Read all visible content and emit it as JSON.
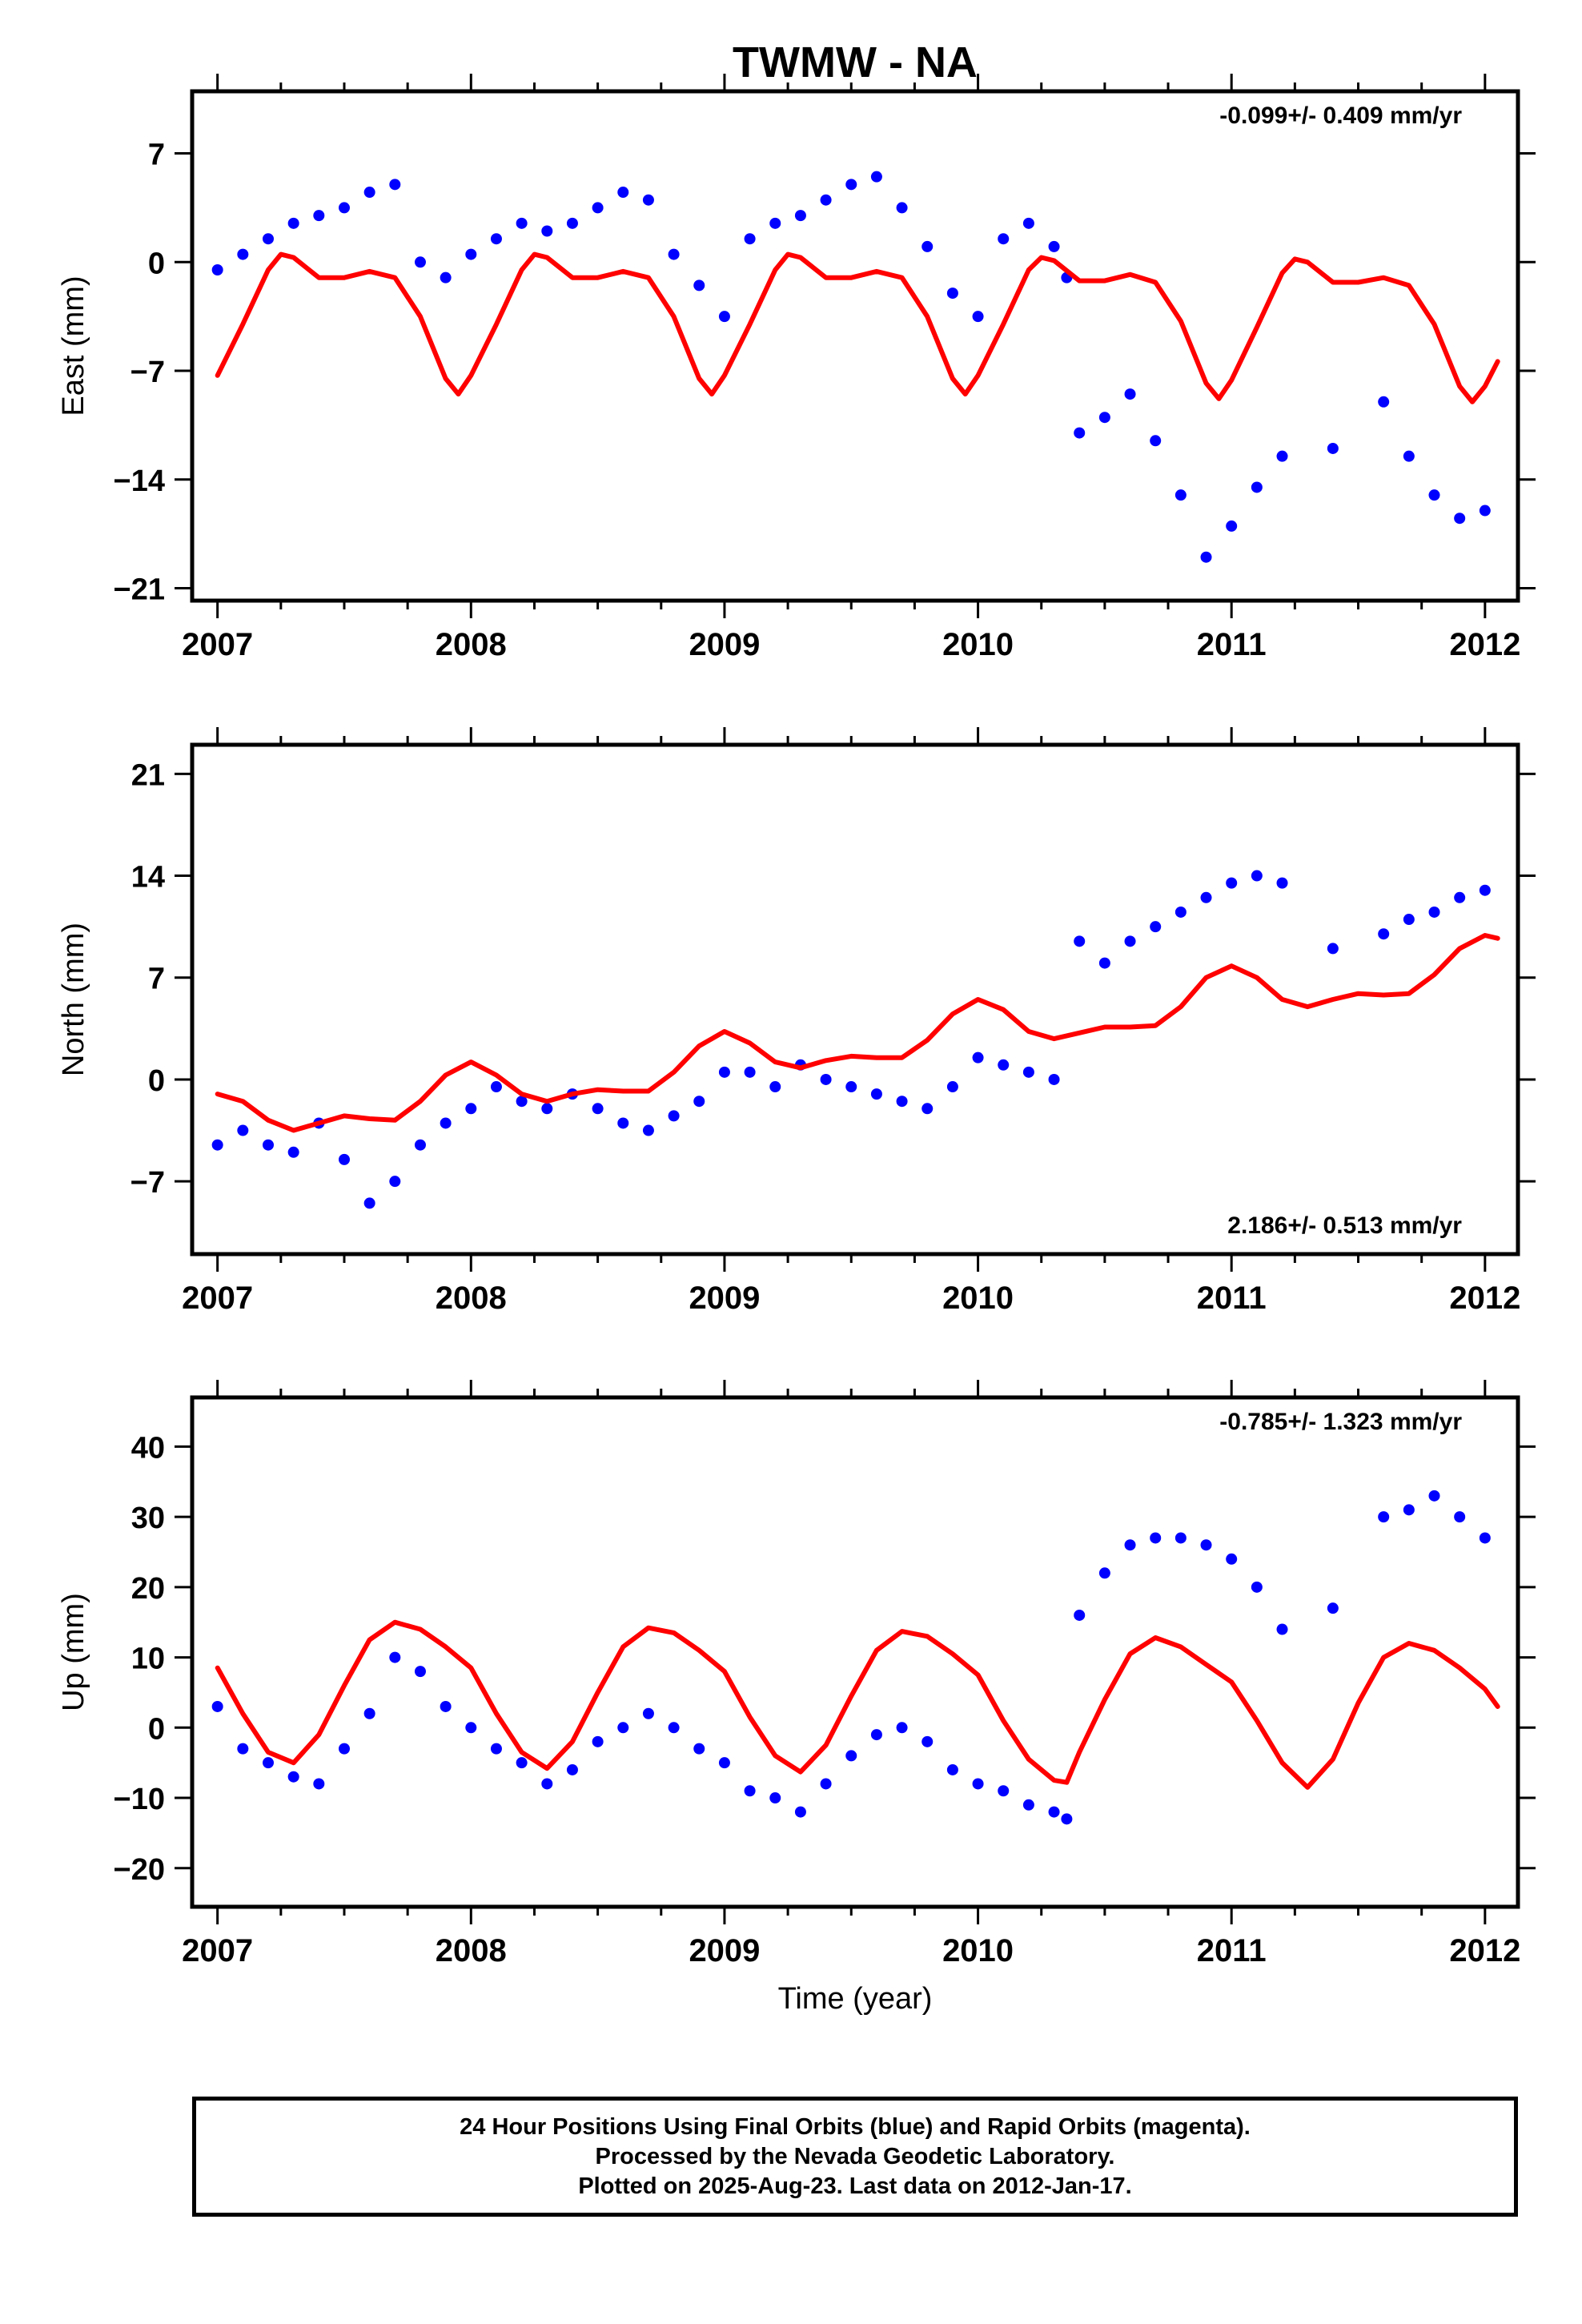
{
  "title": "TWMW - NA",
  "xlabel": "Time (year)",
  "footer": {
    "line1": "24 Hour Positions Using Final Orbits (blue) and Rapid Orbits (magenta).",
    "line2": "Processed by the Nevada Geodetic Laboratory.",
    "line3": "Plotted on 2025-Aug-23. Last data on 2012-Jan-17."
  },
  "colors": {
    "observations": "#0000ff",
    "model": "#ff0000",
    "axes": "#000000"
  },
  "chart_data": [
    {
      "type": "scatter",
      "ylabel": "East (mm)",
      "rate_label": "-0.099+/- 0.409 mm/yr",
      "rate_position": "top-right",
      "xlim": [
        2006.9,
        2012.13
      ],
      "ylim": [
        -21.8,
        11
      ],
      "yticks": [
        7,
        0,
        -7,
        -14,
        -21
      ],
      "ytick_labels": [
        "7",
        "0",
        "−7",
        "−14",
        "−21"
      ],
      "xticks": [
        2007,
        2008,
        2009,
        2010,
        2011,
        2012
      ],
      "xtick_labels": [
        "2007",
        "2008",
        "2009",
        "2010",
        "2011",
        "2012"
      ],
      "grid": false,
      "series": [
        {
          "kind": "points",
          "x": [
            2007.0,
            2007.1,
            2007.2,
            2007.3,
            2007.4,
            2007.5,
            2007.6,
            2007.7,
            2007.8,
            2007.9,
            2008.0,
            2008.1,
            2008.2,
            2008.3,
            2008.4,
            2008.5,
            2008.6,
            2008.7,
            2008.8,
            2008.9,
            2009.0,
            2009.1,
            2009.2,
            2009.3,
            2009.4,
            2009.5,
            2009.6,
            2009.7,
            2009.8,
            2009.9,
            2010.0,
            2010.1,
            2010.2,
            2010.3,
            2010.35,
            2010.4,
            2010.5,
            2010.6,
            2010.7,
            2010.8,
            2010.9,
            2011.0,
            2011.1,
            2011.2,
            2011.4,
            2011.6,
            2011.7,
            2011.8,
            2011.9,
            2012.0
          ],
          "y": [
            -0.5,
            0.5,
            1.5,
            2.5,
            3.0,
            3.5,
            4.5,
            5.0,
            0.0,
            -1.0,
            0.5,
            1.5,
            2.5,
            2.0,
            2.5,
            3.5,
            4.5,
            4.0,
            0.5,
            -1.5,
            -3.5,
            1.5,
            2.5,
            3.0,
            4.0,
            5.0,
            5.5,
            3.5,
            1.0,
            -2.0,
            -3.5,
            1.5,
            2.5,
            1.0,
            -1.0,
            -11.0,
            -10.0,
            -8.5,
            -11.5,
            -15.0,
            -19.0,
            -17.0,
            -14.5,
            -12.5,
            -12.0,
            -9.0,
            -12.5,
            -15.0,
            -16.5,
            -16.0
          ]
        },
        {
          "kind": "line",
          "x": [
            2007.0,
            2007.1,
            2007.2,
            2007.25,
            2007.3,
            2007.4,
            2007.5,
            2007.6,
            2007.7,
            2007.8,
            2007.9,
            2007.95,
            2008.0,
            2008.1,
            2008.2,
            2008.25,
            2008.3,
            2008.4,
            2008.5,
            2008.6,
            2008.7,
            2008.8,
            2008.9,
            2008.95,
            2009.0,
            2009.1,
            2009.2,
            2009.25,
            2009.3,
            2009.4,
            2009.5,
            2009.6,
            2009.7,
            2009.8,
            2009.9,
            2009.95,
            2010.0,
            2010.1,
            2010.2,
            2010.25,
            2010.3,
            2010.4,
            2010.5,
            2010.6,
            2010.7,
            2010.8,
            2010.9,
            2010.95,
            2011.0,
            2011.1,
            2011.2,
            2011.25,
            2011.3,
            2011.4,
            2011.5,
            2011.6,
            2011.7,
            2011.8,
            2011.9,
            2011.95,
            2012.0,
            2012.05
          ],
          "y": [
            -7.3,
            -4.0,
            -0.5,
            0.5,
            0.3,
            -1.0,
            -1.0,
            -0.6,
            -1.0,
            -3.5,
            -7.5,
            -8.5,
            -7.3,
            -4.0,
            -0.5,
            0.5,
            0.3,
            -1.0,
            -1.0,
            -0.6,
            -1.0,
            -3.5,
            -7.5,
            -8.5,
            -7.3,
            -4.0,
            -0.5,
            0.5,
            0.3,
            -1.0,
            -1.0,
            -0.6,
            -1.0,
            -3.5,
            -7.5,
            -8.5,
            -7.3,
            -4.0,
            -0.5,
            0.3,
            0.1,
            -1.2,
            -1.2,
            -0.8,
            -1.3,
            -3.8,
            -7.8,
            -8.8,
            -7.6,
            -4.2,
            -0.7,
            0.2,
            0.0,
            -1.3,
            -1.3,
            -1.0,
            -1.5,
            -4.0,
            -8.0,
            -9.0,
            -8.0,
            -6.4
          ]
        }
      ]
    },
    {
      "type": "scatter",
      "ylabel": "North (mm)",
      "rate_label": "2.186+/- 0.513 mm/yr",
      "rate_position": "bottom-right",
      "xlim": [
        2006.9,
        2012.13
      ],
      "ylim": [
        -12,
        23
      ],
      "yticks": [
        21,
        14,
        7,
        0,
        -7
      ],
      "ytick_labels": [
        "21",
        "14",
        "7",
        "0",
        "−7"
      ],
      "xticks": [
        2007,
        2008,
        2009,
        2010,
        2011,
        2012
      ],
      "xtick_labels": [
        "2007",
        "2008",
        "2009",
        "2010",
        "2011",
        "2012"
      ],
      "grid": false,
      "series": [
        {
          "kind": "points",
          "x": [
            2007.0,
            2007.1,
            2007.2,
            2007.3,
            2007.4,
            2007.5,
            2007.6,
            2007.7,
            2007.8,
            2007.9,
            2008.0,
            2008.1,
            2008.2,
            2008.3,
            2008.4,
            2008.5,
            2008.6,
            2008.7,
            2008.8,
            2008.9,
            2009.0,
            2009.1,
            2009.2,
            2009.3,
            2009.4,
            2009.5,
            2009.6,
            2009.7,
            2009.8,
            2009.9,
            2010.0,
            2010.1,
            2010.2,
            2010.3,
            2010.4,
            2010.5,
            2010.6,
            2010.7,
            2010.8,
            2010.9,
            2011.0,
            2011.1,
            2011.2,
            2011.4,
            2011.6,
            2011.7,
            2011.8,
            2011.9,
            2012.0
          ],
          "y": [
            -4.5,
            -3.5,
            -4.5,
            -5.0,
            -3.0,
            -5.5,
            -8.5,
            -7.0,
            -4.5,
            -3.0,
            -2.0,
            -0.5,
            -1.5,
            -2.0,
            -1.0,
            -2.0,
            -3.0,
            -3.5,
            -2.5,
            -1.5,
            0.5,
            0.5,
            -0.5,
            1.0,
            0.0,
            -0.5,
            -1.0,
            -1.5,
            -2.0,
            -0.5,
            1.5,
            1.0,
            0.5,
            0.0,
            9.5,
            8.0,
            9.5,
            10.5,
            11.5,
            12.5,
            13.5,
            14.0,
            13.5,
            9.0,
            10.0,
            11.0,
            11.5,
            12.5,
            13.0
          ]
        },
        {
          "kind": "line",
          "x": [
            2007.0,
            2007.1,
            2007.2,
            2007.3,
            2007.4,
            2007.5,
            2007.6,
            2007.7,
            2007.8,
            2007.9,
            2008.0,
            2008.1,
            2008.2,
            2008.3,
            2008.4,
            2008.5,
            2008.6,
            2008.7,
            2008.8,
            2008.9,
            2009.0,
            2009.1,
            2009.2,
            2009.3,
            2009.4,
            2009.5,
            2009.6,
            2009.7,
            2009.8,
            2009.9,
            2010.0,
            2010.1,
            2010.2,
            2010.3,
            2010.4,
            2010.5,
            2010.6,
            2010.7,
            2010.8,
            2010.9,
            2011.0,
            2011.1,
            2011.2,
            2011.3,
            2011.4,
            2011.5,
            2011.6,
            2011.7,
            2011.8,
            2011.9,
            2012.0,
            2012.05
          ],
          "y": [
            -1.0,
            -1.5,
            -2.8,
            -3.5,
            -3.0,
            -2.5,
            -2.7,
            -2.8,
            -1.5,
            0.3,
            1.2,
            0.3,
            -1.0,
            -1.5,
            -1.0,
            -0.7,
            -0.8,
            -0.8,
            0.5,
            2.3,
            3.3,
            2.5,
            1.2,
            0.8,
            1.3,
            1.6,
            1.5,
            1.5,
            2.7,
            4.5,
            5.5,
            4.8,
            3.3,
            2.8,
            3.2,
            3.6,
            3.6,
            3.7,
            5.0,
            7.0,
            7.8,
            7.0,
            5.5,
            5.0,
            5.5,
            5.9,
            5.8,
            5.9,
            7.2,
            9.0,
            9.9,
            9.7
          ]
        }
      ]
    },
    {
      "type": "scatter",
      "ylabel": "Up (mm)",
      "rate_label": "-0.785+/- 1.323 mm/yr",
      "rate_position": "top-right",
      "xlim": [
        2006.9,
        2012.13
      ],
      "ylim": [
        -25.5,
        47
      ],
      "yticks": [
        40,
        30,
        20,
        10,
        0,
        -10,
        -20
      ],
      "ytick_labels": [
        "40",
        "30",
        "20",
        "10",
        "0",
        "−10",
        "−20"
      ],
      "xticks": [
        2007,
        2008,
        2009,
        2010,
        2011,
        2012
      ],
      "xtick_labels": [
        "2007",
        "2008",
        "2009",
        "2010",
        "2011",
        "2012"
      ],
      "grid": false,
      "series": [
        {
          "kind": "points",
          "x": [
            2007.0,
            2007.1,
            2007.2,
            2007.3,
            2007.4,
            2007.5,
            2007.6,
            2007.7,
            2007.8,
            2007.9,
            2008.0,
            2008.1,
            2008.2,
            2008.3,
            2008.4,
            2008.5,
            2008.6,
            2008.7,
            2008.8,
            2008.9,
            2009.0,
            2009.1,
            2009.2,
            2009.3,
            2009.4,
            2009.5,
            2009.6,
            2009.7,
            2009.8,
            2009.9,
            2010.0,
            2010.1,
            2010.2,
            2010.3,
            2010.35,
            2010.4,
            2010.5,
            2010.6,
            2010.7,
            2010.8,
            2010.9,
            2011.0,
            2011.1,
            2011.2,
            2011.4,
            2011.6,
            2011.7,
            2011.8,
            2011.9,
            2012.0
          ],
          "y": [
            3.0,
            -3.0,
            -5.0,
            -7.0,
            -8.0,
            -3.0,
            2.0,
            10.0,
            8.0,
            3.0,
            0.0,
            -3.0,
            -5.0,
            -8.0,
            -6.0,
            -2.0,
            0.0,
            2.0,
            0.0,
            -3.0,
            -5.0,
            -9.0,
            -10.0,
            -12.0,
            -8.0,
            -4.0,
            -1.0,
            0.0,
            -2.0,
            -6.0,
            -8.0,
            -9.0,
            -11.0,
            -12.0,
            -13.0,
            16.0,
            22.0,
            26.0,
            27.0,
            27.0,
            26.0,
            24.0,
            20.0,
            14.0,
            17.0,
            30.0,
            31.0,
            33.0,
            30.0,
            27.0
          ]
        },
        {
          "kind": "line",
          "x": [
            2007.0,
            2007.1,
            2007.2,
            2007.3,
            2007.4,
            2007.5,
            2007.6,
            2007.7,
            2007.8,
            2007.9,
            2008.0,
            2008.1,
            2008.2,
            2008.3,
            2008.4,
            2008.5,
            2008.6,
            2008.7,
            2008.8,
            2008.9,
            2009.0,
            2009.1,
            2009.2,
            2009.3,
            2009.4,
            2009.5,
            2009.6,
            2009.7,
            2009.8,
            2009.9,
            2010.0,
            2010.1,
            2010.2,
            2010.3,
            2010.35,
            2010.4,
            2010.5,
            2010.6,
            2010.7,
            2010.8,
            2010.9,
            2011.0,
            2011.1,
            2011.2,
            2011.3,
            2011.4,
            2011.5,
            2011.6,
            2011.7,
            2011.8,
            2011.9,
            2012.0,
            2012.05
          ],
          "y": [
            8.5,
            2.0,
            -3.5,
            -5.0,
            -1.0,
            6.0,
            12.5,
            15.0,
            14.0,
            11.5,
            8.5,
            2.0,
            -3.5,
            -5.8,
            -2.0,
            5.0,
            11.5,
            14.2,
            13.5,
            11.0,
            8.0,
            1.5,
            -4.0,
            -6.3,
            -2.5,
            4.5,
            11.0,
            13.7,
            13.0,
            10.5,
            7.5,
            1.0,
            -4.5,
            -7.5,
            -7.8,
            -3.5,
            4.0,
            10.5,
            12.8,
            11.5,
            9.0,
            6.5,
            1.0,
            -5.0,
            -8.5,
            -4.5,
            3.5,
            10.0,
            12.0,
            11.0,
            8.5,
            5.5,
            3.0
          ]
        }
      ]
    }
  ]
}
